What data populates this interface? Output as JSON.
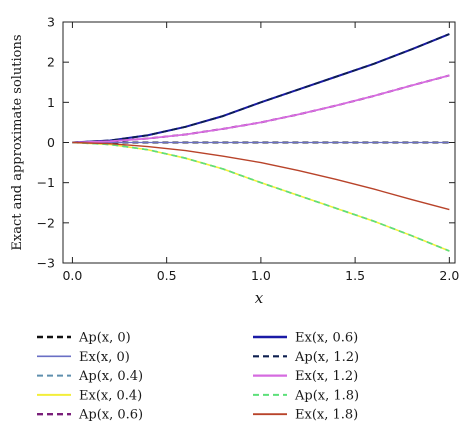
{
  "chart_data": {
    "type": "line",
    "xlabel": "x",
    "ylabel": "Exact and approximate solutions",
    "xlim": [
      -0.05,
      2.03
    ],
    "ylim": [
      -3,
      3
    ],
    "xticks": [
      0.0,
      0.5,
      1.0,
      1.5,
      2.0
    ],
    "xtick_labels": [
      "0.0",
      "0.5",
      "1.0",
      "1.5",
      "2.0"
    ],
    "yticks": [
      -3,
      -2,
      -1,
      0,
      1,
      2,
      3
    ],
    "ytick_labels": [
      "−3",
      "−2",
      "−1",
      "0",
      "1",
      "2",
      "3"
    ],
    "x": [
      0.0,
      0.2,
      0.4,
      0.6,
      0.8,
      1.0,
      1.2,
      1.4,
      1.6,
      1.8,
      2.0
    ],
    "grid": false,
    "legend_position": "below",
    "series": [
      {
        "name": "Ap(x, 0)",
        "color": "#111111",
        "dash": "6,4",
        "width": 2.0,
        "values": [
          0,
          0,
          0,
          0,
          0,
          0,
          0,
          0,
          0,
          0,
          0
        ]
      },
      {
        "name": "Ex(x, 0)",
        "color": "#6a6fc4",
        "dash": "",
        "width": 1.2,
        "values": [
          0,
          0,
          0,
          0,
          0,
          0,
          0,
          0,
          0,
          0,
          0
        ]
      },
      {
        "name": "Ap(x, 0.4)",
        "color": "#5f8fae",
        "dash": "6,4",
        "width": 1.6,
        "values": [
          0,
          -0.05,
          -0.18,
          -0.39,
          -0.66,
          -1.0,
          -1.32,
          -1.64,
          -1.96,
          -2.32,
          -2.7
        ]
      },
      {
        "name": "Ex(x, 0.4)",
        "color": "#f3ee3a",
        "dash": "",
        "width": 1.6,
        "values": [
          0,
          -0.05,
          -0.18,
          -0.39,
          -0.66,
          -1.0,
          -1.32,
          -1.64,
          -1.96,
          -2.32,
          -2.7
        ]
      },
      {
        "name": "Ap(x, 0.6)",
        "color": "#7a1f7a",
        "dash": "6,4",
        "width": 2.0,
        "values": [
          0,
          0.03,
          0.1,
          0.2,
          0.34,
          0.5,
          0.7,
          0.92,
          1.16,
          1.42,
          1.67
        ]
      },
      {
        "name": "Ex(x, 0.6)",
        "color": "#1a1aa6",
        "dash": "",
        "width": 2.0,
        "values": [
          0,
          0.05,
          0.18,
          0.39,
          0.66,
          1.0,
          1.32,
          1.64,
          1.96,
          2.32,
          2.7
        ]
      },
      {
        "name": "Ap(x, 1.2)",
        "color": "#0d1f4f",
        "dash": "6,4",
        "width": 1.8,
        "values": [
          0,
          0.05,
          0.18,
          0.39,
          0.66,
          1.0,
          1.32,
          1.64,
          1.96,
          2.32,
          2.7
        ]
      },
      {
        "name": "Ex(x, 1.2)",
        "color": "#d66be0",
        "dash": "",
        "width": 1.8,
        "values": [
          0,
          0.03,
          0.1,
          0.2,
          0.34,
          0.5,
          0.7,
          0.92,
          1.16,
          1.42,
          1.67
        ]
      },
      {
        "name": "Ap(x, 1.8)",
        "color": "#5ce07a",
        "dash": "6,4",
        "width": 1.6,
        "values": [
          0,
          -0.05,
          -0.18,
          -0.39,
          -0.66,
          -1.0,
          -1.32,
          -1.64,
          -1.96,
          -2.32,
          -2.7
        ]
      },
      {
        "name": "Ex(x, 1.8)",
        "color": "#b8432a",
        "dash": "",
        "width": 1.4,
        "values": [
          0,
          -0.03,
          -0.1,
          -0.2,
          -0.34,
          -0.5,
          -0.7,
          -0.92,
          -1.16,
          -1.42,
          -1.67
        ]
      }
    ]
  }
}
